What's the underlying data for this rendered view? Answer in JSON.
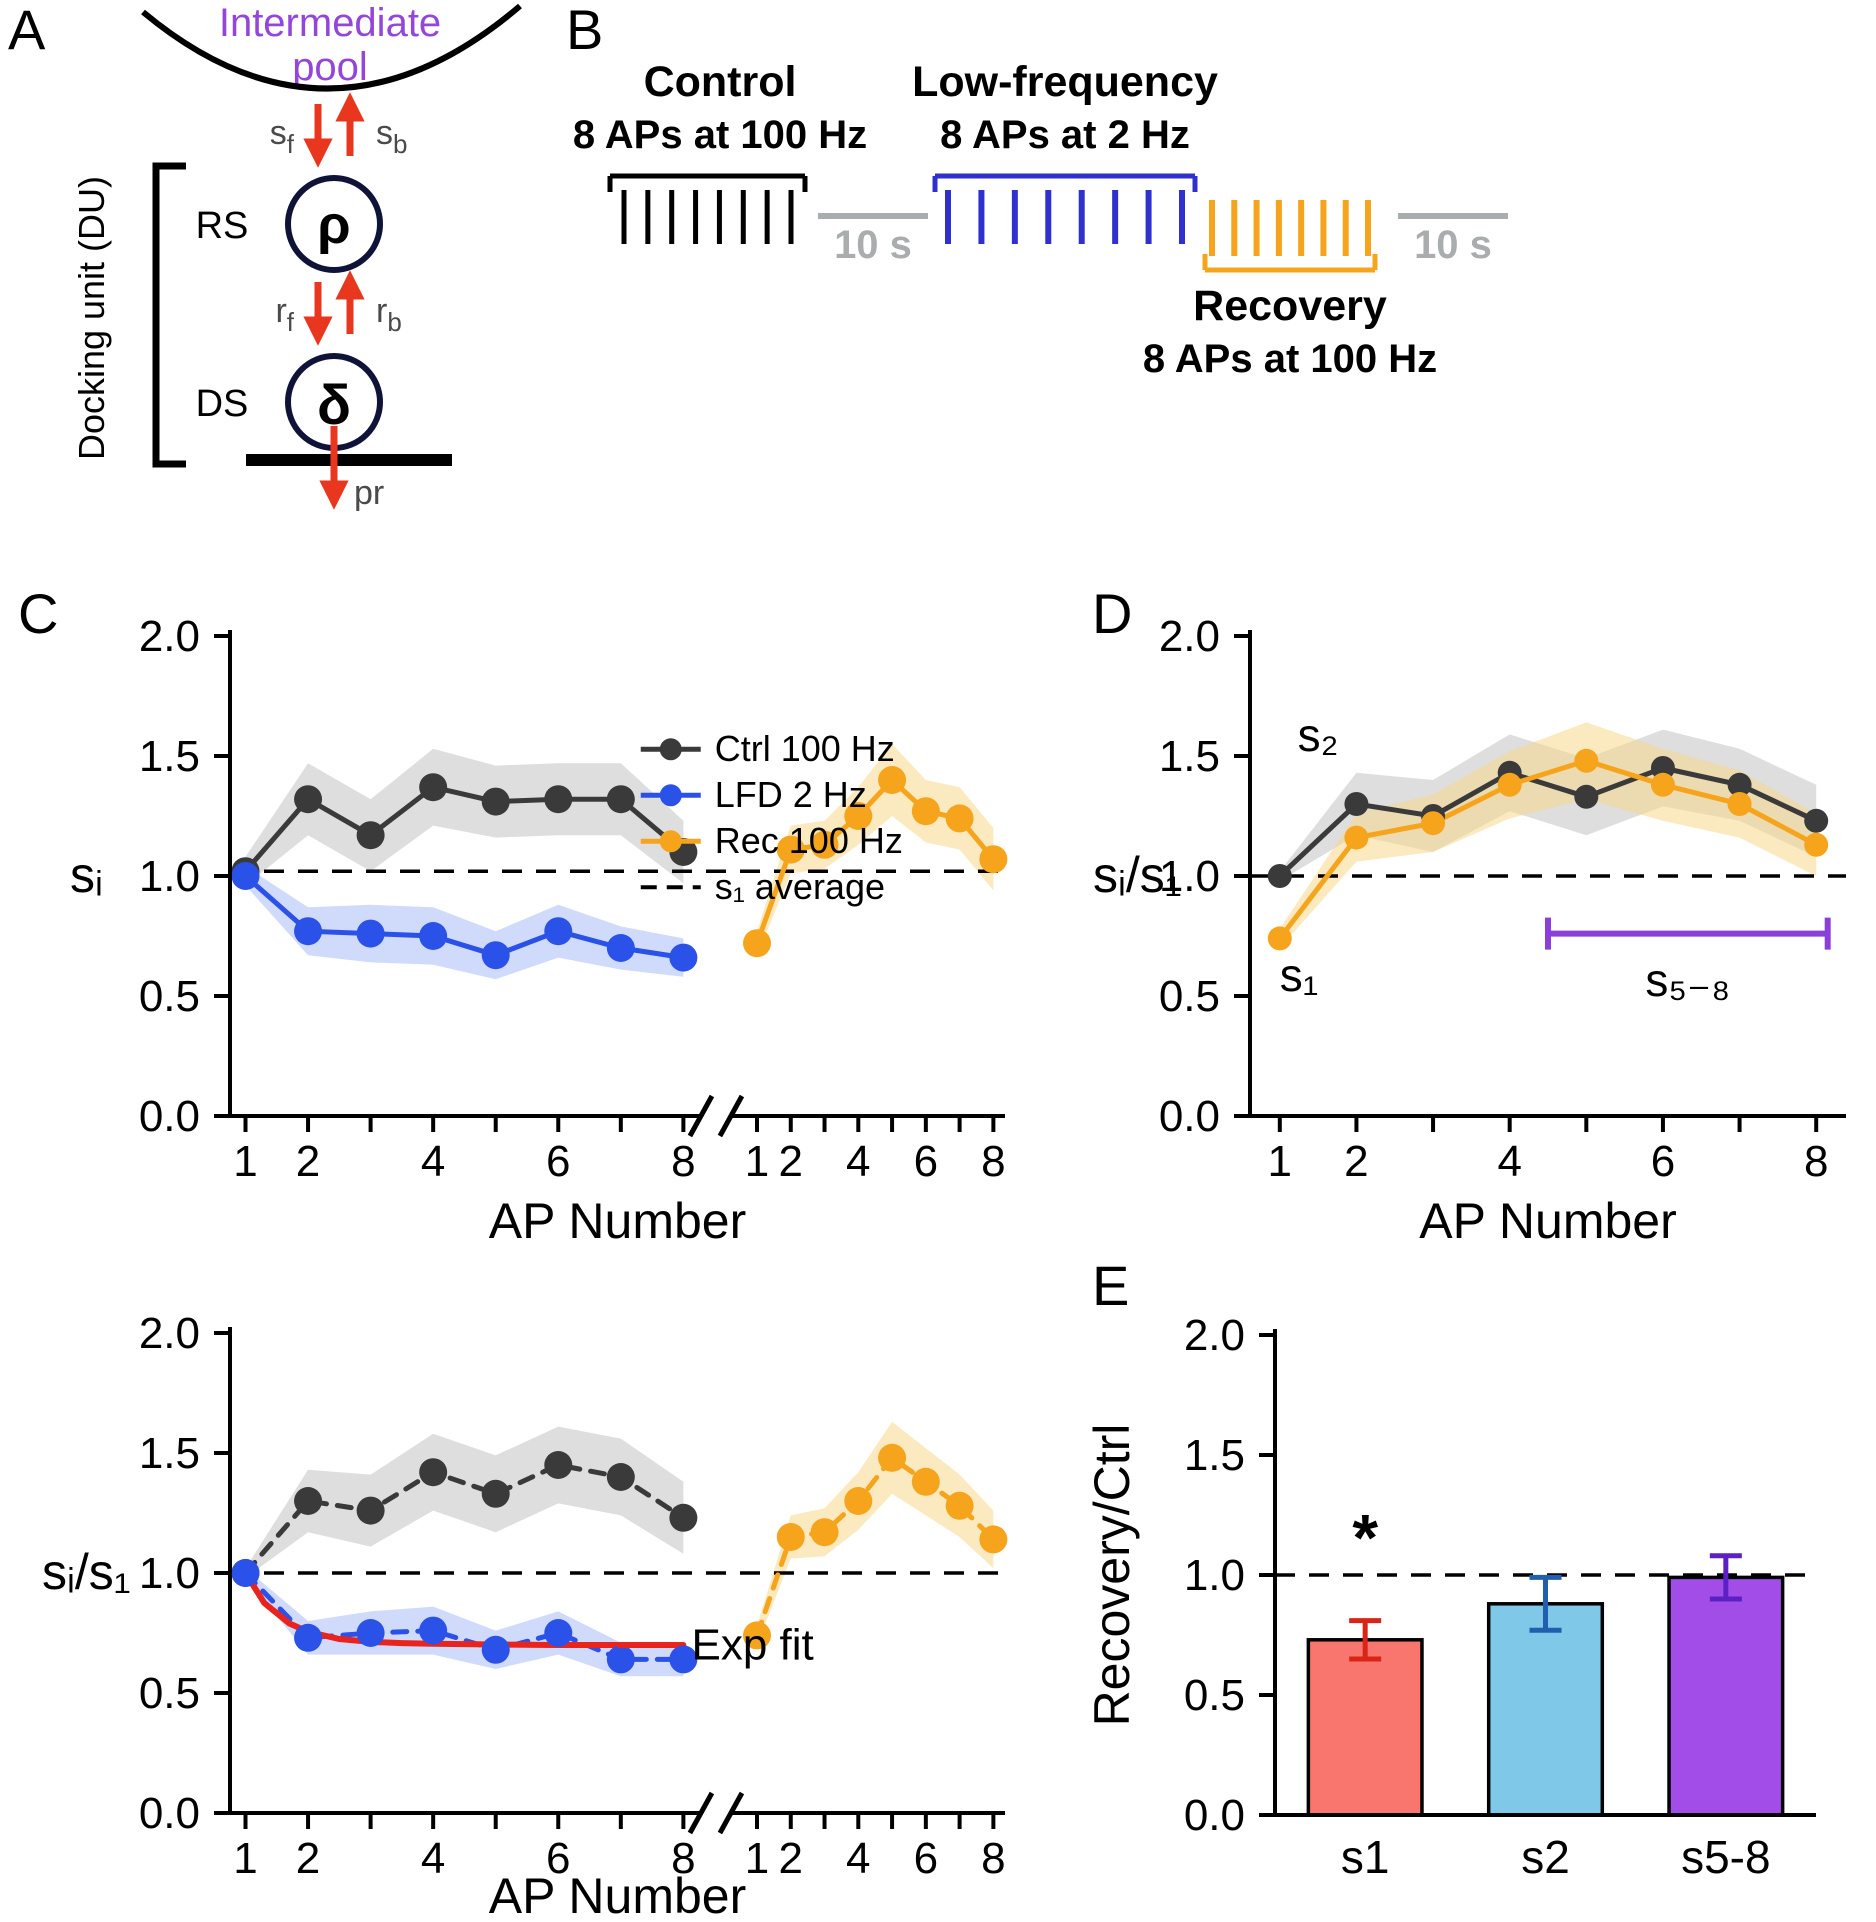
{
  "panels": {
    "A": {
      "label": "A",
      "pool_line1": "Intermediate",
      "pool_line2": "pool",
      "rs": "RS",
      "ds": "DS",
      "rho": "ρ",
      "delta": "δ",
      "sf": {
        "base": "s",
        "sub": "f"
      },
      "sb": {
        "base": "s",
        "sub": "b"
      },
      "rf": {
        "base": "r",
        "sub": "f"
      },
      "rb": {
        "base": "r",
        "sub": "b"
      },
      "pr": "pr",
      "docking": "Docking unit (DU)"
    },
    "B": {
      "label": "B",
      "control_title": "Control",
      "control_sub": "8 APs at 100 Hz",
      "lfd_title": "Low-frequency",
      "lfd_sub": "8 APs at 2 Hz",
      "recovery_title": "Recovery",
      "recovery_sub": "8 APs at 100 Hz",
      "gap1": "10 s",
      "gap2": "10 s",
      "n_aps": 8,
      "colors": {
        "control": "#000000",
        "lfd": "#3030cf",
        "recovery": "#f5a41c",
        "gap": "#a9adad"
      }
    },
    "C": {
      "label": "C"
    },
    "D": {
      "label": "D"
    },
    "E": {
      "label": "E"
    }
  },
  "chart_data": [
    {
      "id": "c_top",
      "type": "line",
      "ylabel": "sᵢ",
      "xlabel": "AP Number",
      "ylim": [
        0,
        2
      ],
      "yticks": [
        "0.0",
        "0.5",
        "1.0",
        "1.5",
        "2.0"
      ],
      "x": [
        1,
        2,
        3,
        4,
        5,
        6,
        7,
        8
      ],
      "xticks_labeled": [
        1,
        2,
        4,
        6,
        8
      ],
      "axis_break": true,
      "baseline": 1.02,
      "series": [
        {
          "name": "Ctrl 100 Hz",
          "color": "#3a3a3a",
          "band_color": "#c2c2c2",
          "segment": 0,
          "values": [
            1.02,
            1.32,
            1.17,
            1.37,
            1.31,
            1.32,
            1.32,
            1.1
          ],
          "band": [
            0.06,
            0.15,
            0.15,
            0.16,
            0.15,
            0.15,
            0.15,
            0.13
          ]
        },
        {
          "name": "LFD 2 Hz",
          "color": "#2a52e8",
          "band_color": "#aabdf8",
          "segment": 0,
          "values": [
            1.0,
            0.77,
            0.76,
            0.75,
            0.67,
            0.77,
            0.7,
            0.66
          ],
          "band": [
            0.04,
            0.1,
            0.12,
            0.12,
            0.1,
            0.11,
            0.09,
            0.08
          ]
        },
        {
          "name": "Rec 100 Hz",
          "color": "#f5a41c",
          "band_color": "#f8d78a",
          "segment": 1,
          "values": [
            0.72,
            1.11,
            1.13,
            1.25,
            1.4,
            1.27,
            1.24,
            1.07
          ],
          "band": [
            0.05,
            0.1,
            0.1,
            0.12,
            0.15,
            0.13,
            0.13,
            0.13
          ]
        }
      ],
      "legend": {
        "entries": [
          {
            "series": 0,
            "label": "Ctrl 100 Hz"
          },
          {
            "series": 1,
            "label": "LFD 2 Hz"
          },
          {
            "series": 2,
            "label": "Rec 100 Hz"
          },
          {
            "type": "dash",
            "color": "#000000",
            "label": "s₁ average"
          }
        ]
      }
    },
    {
      "id": "c_bottom",
      "type": "line",
      "ylabel": "sᵢ/s₁",
      "xlabel": "AP Number",
      "ylim": [
        0,
        2
      ],
      "yticks": [
        "0.0",
        "0.5",
        "1.0",
        "1.5",
        "2.0"
      ],
      "x": [
        1,
        2,
        3,
        4,
        5,
        6,
        7,
        8
      ],
      "xticks_labeled": [
        1,
        2,
        4,
        6,
        8
      ],
      "axis_break": true,
      "baseline": 1.0,
      "series": [
        {
          "name": "Ctrl 100 Hz",
          "color": "#3a3a3a",
          "band_color": "#c2c2c2",
          "segment": 0,
          "dash": "14 11",
          "values": [
            1.0,
            1.3,
            1.26,
            1.42,
            1.33,
            1.45,
            1.4,
            1.23
          ],
          "band": [
            0.02,
            0.13,
            0.15,
            0.16,
            0.16,
            0.16,
            0.16,
            0.15
          ]
        },
        {
          "name": "LFD 2 Hz",
          "color": "#2a52e8",
          "band_color": "#aabdf8",
          "segment": 0,
          "dash": "14 11",
          "values": [
            1.0,
            0.73,
            0.75,
            0.76,
            0.68,
            0.75,
            0.64,
            0.64
          ],
          "band": [
            0.02,
            0.07,
            0.09,
            0.1,
            0.08,
            0.09,
            0.07,
            0.07
          ]
        },
        {
          "name": "Rec 100 Hz",
          "color": "#f5a41c",
          "band_color": "#f8d78a",
          "segment": 1,
          "dash": "14 11",
          "values": [
            0.74,
            1.15,
            1.17,
            1.3,
            1.48,
            1.38,
            1.28,
            1.14
          ],
          "band": [
            0.04,
            0.09,
            0.1,
            0.12,
            0.15,
            0.14,
            0.13,
            0.12
          ]
        },
        {
          "name": "Exp fit",
          "color": "#e8241c",
          "segment": 0,
          "markers": false,
          "width": 6,
          "x": [
            1,
            1.3,
            1.7,
            2,
            2.5,
            3,
            3.5,
            4,
            5,
            6,
            7,
            8
          ],
          "values": [
            1.0,
            0.875,
            0.79,
            0.755,
            0.725,
            0.713,
            0.708,
            0.705,
            0.702,
            0.7,
            0.7,
            0.7
          ]
        }
      ],
      "legend": {
        "entries": [
          {
            "series": 3,
            "label": "Exp fit"
          }
        ]
      }
    },
    {
      "id": "d",
      "type": "line",
      "ylabel": "sᵢ/s₁",
      "xlabel": "AP Number",
      "ylim": [
        0,
        2
      ],
      "yticks": [
        "0.0",
        "0.5",
        "1.0",
        "1.5",
        "2.0"
      ],
      "x": [
        1,
        2,
        3,
        4,
        5,
        6,
        7,
        8
      ],
      "xticks_labeled": [
        1,
        2,
        4,
        6,
        8
      ],
      "axis_break": false,
      "baseline": 1.0,
      "series": [
        {
          "name": "Ctrl 100 Hz",
          "color": "#3a3a3a",
          "band_color": "#c2c2c2",
          "segment": 0,
          "values": [
            1.0,
            1.3,
            1.25,
            1.43,
            1.33,
            1.45,
            1.38,
            1.23
          ],
          "band": [
            0.02,
            0.13,
            0.15,
            0.16,
            0.16,
            0.16,
            0.15,
            0.15
          ]
        },
        {
          "name": "Rec 100 Hz",
          "color": "#f5a41c",
          "band_color": "#f8d78a",
          "segment": 0,
          "values": [
            0.74,
            1.16,
            1.22,
            1.38,
            1.48,
            1.38,
            1.3,
            1.13
          ],
          "band": [
            0.04,
            0.1,
            0.12,
            0.14,
            0.16,
            0.15,
            0.14,
            0.13
          ]
        }
      ],
      "annotations": [
        {
          "text": "s₂",
          "color": "#1b96e3",
          "x": 1.5,
          "y": 1.52
        },
        {
          "text": "s₁",
          "color": "#e8241c",
          "x": 1.25,
          "y": 0.52
        },
        {
          "type": "bracket",
          "x1": 4.5,
          "x2": 8.15,
          "y": 0.76,
          "color": "#8b3fd9",
          "label": "s₅₋₈",
          "label_y": 0.5
        }
      ]
    },
    {
      "id": "e",
      "type": "bar",
      "ylabel": "Recovery/Ctrl",
      "ylim": [
        0,
        2
      ],
      "yticks": [
        "0.0",
        "0.5",
        "1.0",
        "1.5",
        "2.0"
      ],
      "categories": [
        "s1",
        "s2",
        "s5-8"
      ],
      "values": [
        0.73,
        0.88,
        0.99
      ],
      "errors": [
        0.08,
        0.11,
        0.09
      ],
      "colors": [
        "#f8766d",
        "#7fc8e8",
        "#a24de8"
      ],
      "error_colors": [
        "#d92416",
        "#1f5fae",
        "#5b21c4"
      ],
      "baseline": 1.0,
      "sig_label": "*",
      "sig_index": 0,
      "sig_y": 1.06
    }
  ]
}
